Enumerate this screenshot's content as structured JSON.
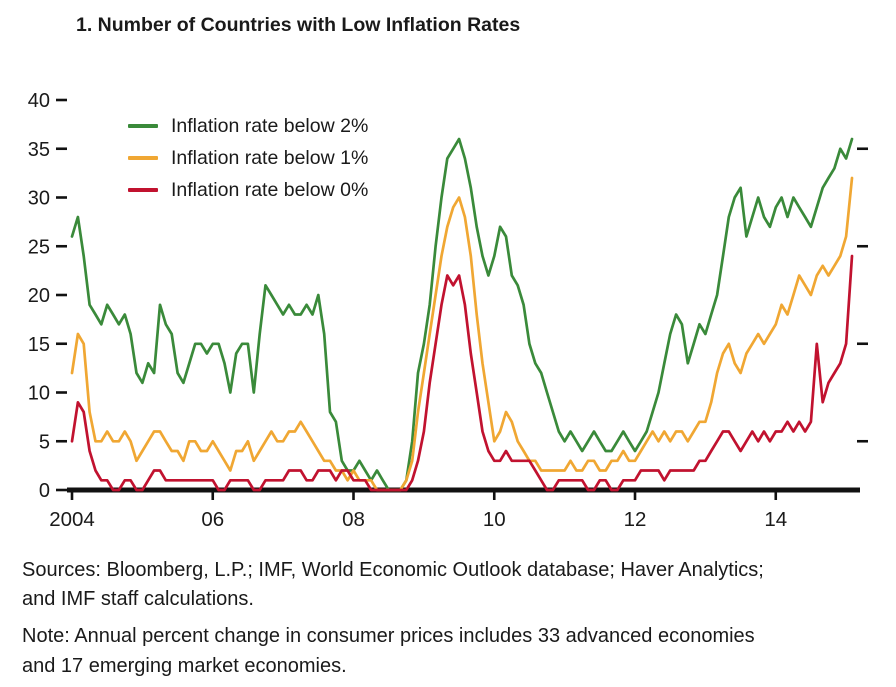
{
  "figure": {
    "title": "1. Number of Countries with Low Inflation Rates",
    "sources_lines": [
      "Sources: Bloomberg, L.P.; IMF, World Economic Outlook database; Haver Analytics;",
      "and IMF staff calculations."
    ],
    "note_lines": [
      "Note: Annual percent change in consumer prices includes 33 advanced economies",
      "and 17 emerging market economies."
    ]
  },
  "chart_data": {
    "type": "line",
    "title": "1. Number of Countries with Low Inflation Rates",
    "xlabel": "",
    "ylabel": "",
    "x_unit": "month",
    "x_start": "2004-01",
    "x_end": "2015-02",
    "ylim": [
      0,
      40
    ],
    "ytick_step": 5,
    "yticks_left": [
      0,
      5,
      10,
      15,
      20,
      25,
      30,
      35,
      40
    ],
    "yticks_right": [
      5,
      15,
      25,
      35
    ],
    "xticks": [
      {
        "label": "2004",
        "month_index": 0
      },
      {
        "label": "06",
        "month_index": 24
      },
      {
        "label": "08",
        "month_index": 48
      },
      {
        "label": "10",
        "month_index": 72
      },
      {
        "label": "12",
        "month_index": 96
      },
      {
        "label": "14",
        "month_index": 120
      }
    ],
    "grid": false,
    "legend_position": "top-left-inside",
    "axis_color": "#111111",
    "series": [
      {
        "name": "Inflation rate below 2%",
        "color": "#3a8a3a",
        "values": [
          26,
          28,
          24,
          19,
          18,
          17,
          19,
          18,
          17,
          18,
          16,
          12,
          11,
          13,
          12,
          19,
          17,
          16,
          12,
          11,
          13,
          15,
          15,
          14,
          15,
          15,
          13,
          10,
          14,
          15,
          15,
          10,
          16,
          21,
          20,
          19,
          18,
          19,
          18,
          18,
          19,
          18,
          20,
          16,
          8,
          7,
          3,
          2,
          2,
          3,
          2,
          1,
          2,
          1,
          0,
          0,
          0,
          1,
          5,
          12,
          15,
          19,
          25,
          30,
          34,
          35,
          36,
          34,
          31,
          27,
          24,
          22,
          24,
          27,
          26,
          22,
          21,
          19,
          15,
          13,
          12,
          10,
          8,
          6,
          5,
          6,
          5,
          4,
          5,
          6,
          5,
          4,
          4,
          5,
          6,
          5,
          4,
          5,
          6,
          8,
          10,
          13,
          16,
          18,
          17,
          13,
          15,
          17,
          16,
          18,
          20,
          24,
          28,
          30,
          31,
          26,
          28,
          30,
          28,
          27,
          29,
          30,
          28,
          30,
          29,
          28,
          27,
          29,
          31,
          32,
          33,
          35,
          34,
          36
        ]
      },
      {
        "name": "Inflation rate below 1%",
        "color": "#f0a733",
        "values": [
          12,
          16,
          15,
          8,
          5,
          5,
          6,
          5,
          5,
          6,
          5,
          3,
          4,
          5,
          6,
          6,
          5,
          4,
          4,
          3,
          5,
          5,
          4,
          4,
          5,
          4,
          3,
          2,
          4,
          4,
          5,
          3,
          4,
          5,
          6,
          5,
          5,
          6,
          6,
          7,
          6,
          5,
          4,
          3,
          3,
          2,
          2,
          1,
          2,
          1,
          1,
          1,
          0,
          0,
          0,
          0,
          0,
          1,
          3,
          8,
          12,
          16,
          20,
          24,
          27,
          29,
          30,
          28,
          24,
          18,
          13,
          9,
          5,
          6,
          8,
          7,
          5,
          4,
          3,
          3,
          2,
          2,
          2,
          2,
          2,
          3,
          2,
          2,
          3,
          3,
          2,
          2,
          3,
          3,
          4,
          3,
          3,
          4,
          5,
          6,
          5,
          6,
          5,
          6,
          6,
          5,
          6,
          7,
          7,
          9,
          12,
          14,
          15,
          13,
          12,
          14,
          15,
          16,
          15,
          16,
          17,
          19,
          18,
          20,
          22,
          21,
          20,
          22,
          23,
          22,
          23,
          24,
          26,
          32
        ]
      },
      {
        "name": "Inflation rate below 0%",
        "color": "#c1122f",
        "values": [
          5,
          9,
          8,
          4,
          2,
          1,
          1,
          0,
          0,
          1,
          1,
          0,
          0,
          1,
          2,
          2,
          1,
          1,
          1,
          1,
          1,
          1,
          1,
          1,
          1,
          0,
          0,
          1,
          1,
          1,
          1,
          0,
          0,
          1,
          1,
          1,
          1,
          2,
          2,
          2,
          1,
          1,
          2,
          2,
          2,
          1,
          2,
          2,
          1,
          1,
          1,
          0,
          0,
          0,
          0,
          0,
          0,
          0,
          1,
          3,
          6,
          11,
          15,
          19,
          22,
          21,
          22,
          19,
          14,
          10,
          6,
          4,
          3,
          3,
          4,
          3,
          3,
          3,
          3,
          2,
          1,
          0,
          0,
          1,
          1,
          1,
          1,
          1,
          0,
          0,
          1,
          1,
          0,
          0,
          1,
          1,
          1,
          2,
          2,
          2,
          2,
          1,
          2,
          2,
          2,
          2,
          2,
          3,
          3,
          4,
          5,
          6,
          6,
          5,
          4,
          5,
          6,
          5,
          6,
          5,
          6,
          6,
          7,
          6,
          7,
          6,
          7,
          15,
          9,
          11,
          12,
          13,
          15,
          24
        ]
      }
    ]
  }
}
